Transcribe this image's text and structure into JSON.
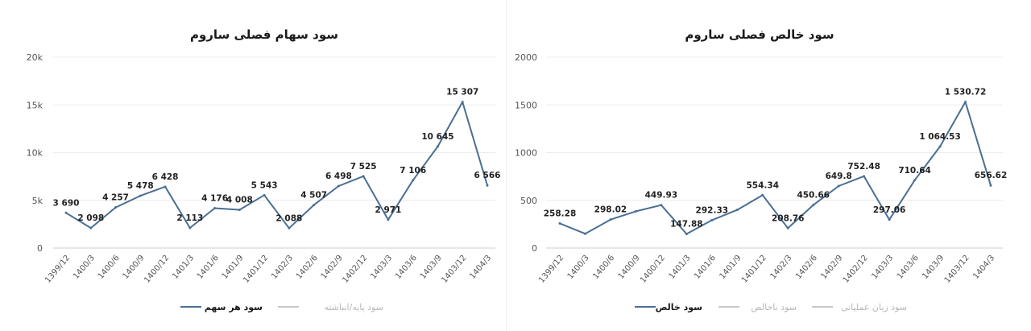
{
  "chart_data": [
    {
      "type": "line",
      "title": "سود سهام فصلی ساروم",
      "categories": [
        "1399/12",
        "1400/3",
        "1400/6",
        "1400/9",
        "1400/12",
        "1401/3",
        "1401/6",
        "1401/9",
        "1401/12",
        "1402/3",
        "1402/6",
        "1402/9",
        "1402/12",
        "1403/3",
        "1403/6",
        "1403/9",
        "1403/12",
        "1404/3"
      ],
      "yticks": [
        "0",
        "5k",
        "10k",
        "15k",
        "20k"
      ],
      "ylim": [
        0,
        20000
      ],
      "grid": true,
      "series": [
        {
          "name": "سود هر سهم",
          "color": "#4a6f93",
          "active": true,
          "values": [
            3690,
            2098,
            4257,
            5478,
            6428,
            2113,
            4176,
            4008,
            5543,
            2088,
            4507,
            6498,
            7525,
            2971,
            7106,
            10645,
            15307,
            6566
          ],
          "labels": [
            "3 690",
            "2 098",
            "4 257",
            "5 478",
            "6 428",
            "2 113",
            "4 176",
            "4 008",
            "5 543",
            "2 088",
            "4 507",
            "6 498",
            "7 525",
            "2 971",
            "7 106",
            "10 645",
            "15 307",
            "6 566"
          ]
        }
      ],
      "legend": [
        {
          "name": "سود هر سهم",
          "color": "#4a6f93",
          "active": true
        },
        {
          "name": "سود پایه/انباشته",
          "color": "#c8c8c8",
          "active": false
        }
      ],
      "legend_position": "bottom"
    },
    {
      "type": "line",
      "title": "سود خالص فصلی ساروم",
      "categories": [
        "1399/12",
        "1400/3",
        "1400/6",
        "1400/9",
        "1400/12",
        "1401/3",
        "1401/6",
        "1401/9",
        "1401/12",
        "1402/3",
        "1402/6",
        "1402/9",
        "1402/12",
        "1403/3",
        "1403/6",
        "1403/9",
        "1403/12",
        "1404/3"
      ],
      "yticks": [
        "0",
        "500",
        "1000",
        "1500",
        "2000"
      ],
      "ylim": [
        0,
        2000
      ],
      "grid": true,
      "series": [
        {
          "name": "سود خالص",
          "color": "#4a6f93",
          "active": true,
          "values": [
            258.28,
            150,
            298.02,
            385,
            449.93,
            147.88,
            292.33,
            400,
            554.34,
            208.76,
            450.66,
            649.8,
            752.48,
            297.06,
            710.64,
            1064.53,
            1530.72,
            656.62
          ],
          "labels": [
            "258.28",
            "",
            "298.02",
            "",
            "449.93",
            "147.88",
            "292.33",
            "",
            "554.34",
            "208.76",
            "450.66",
            "649.8",
            "752.48",
            "297.06",
            "710.64",
            "1 064.53",
            "1 530.72",
            "656.62"
          ]
        }
      ],
      "legend": [
        {
          "name": "سود خالص",
          "color": "#4a6f93",
          "active": true
        },
        {
          "name": "سود ناخالص",
          "color": "#c8c8c8",
          "active": false
        },
        {
          "name": "سود زیان عملیاتی",
          "color": "#c8c8c8",
          "active": false
        }
      ],
      "legend_position": "bottom"
    }
  ]
}
